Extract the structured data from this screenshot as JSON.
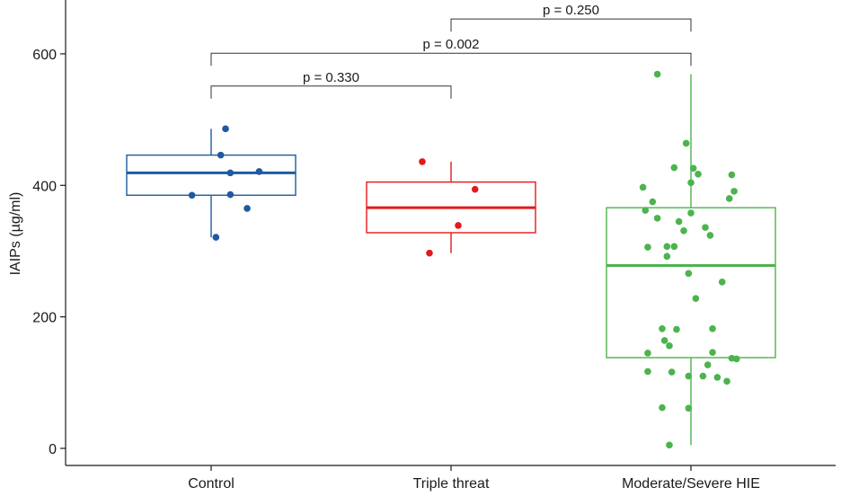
{
  "chart_data": {
    "type": "box",
    "title": "",
    "xlabel": "",
    "ylabel": "IAIPs (µg/ml)",
    "ylim": [
      -25,
      680
    ],
    "yticks": [
      0,
      200,
      400,
      600
    ],
    "categories": [
      "Control",
      "Triple threat",
      "Moderate/Severe HIE"
    ],
    "colors": {
      "Control": "#1f5aa0",
      "Triple threat": "#e31a1c",
      "Moderate/Severe HIE": "#4db34d"
    },
    "boxes": [
      {
        "category": "Control",
        "whisker_low": 321,
        "q1": 385,
        "median": 419,
        "q3": 446,
        "whisker_high": 486,
        "points": [
          [
            0.92,
            385
          ],
          [
            1.04,
            446
          ],
          [
            1.06,
            486
          ],
          [
            1.08,
            419
          ],
          [
            1.2,
            421
          ],
          [
            1.08,
            386
          ],
          [
            1.15,
            365
          ],
          [
            1.02,
            321
          ]
        ]
      },
      {
        "category": "Triple threat",
        "whisker_low": 297,
        "q1": 328,
        "median": 366,
        "q3": 405,
        "whisker_high": 436,
        "points": [
          [
            1.88,
            436
          ],
          [
            2.1,
            394
          ],
          [
            2.03,
            339
          ],
          [
            1.91,
            297
          ]
        ]
      },
      {
        "category": "Moderate/Severe HIE",
        "whisker_low": 5,
        "q1": 138,
        "median": 278,
        "q3": 366,
        "whisker_high": 569,
        "points": [
          [
            2.86,
            569
          ],
          [
            2.98,
            464
          ],
          [
            2.93,
            427
          ],
          [
            3.01,
            426
          ],
          [
            3.03,
            417
          ],
          [
            3.17,
            416
          ],
          [
            3.0,
            404
          ],
          [
            3.18,
            391
          ],
          [
            2.8,
            397
          ],
          [
            2.84,
            375
          ],
          [
            3.16,
            380
          ],
          [
            2.81,
            362
          ],
          [
            3.0,
            358
          ],
          [
            2.86,
            350
          ],
          [
            2.95,
            345
          ],
          [
            3.06,
            336
          ],
          [
            2.97,
            331
          ],
          [
            3.08,
            324
          ],
          [
            2.82,
            306
          ],
          [
            2.9,
            307
          ],
          [
            2.93,
            307
          ],
          [
            2.9,
            292
          ],
          [
            2.99,
            266
          ],
          [
            3.13,
            253
          ],
          [
            3.02,
            228
          ],
          [
            2.88,
            182
          ],
          [
            2.94,
            181
          ],
          [
            3.09,
            182
          ],
          [
            2.89,
            164
          ],
          [
            2.91,
            156
          ],
          [
            2.82,
            145
          ],
          [
            3.09,
            146
          ],
          [
            3.17,
            137
          ],
          [
            3.19,
            136
          ],
          [
            3.07,
            127
          ],
          [
            2.82,
            117
          ],
          [
            2.92,
            116
          ],
          [
            2.99,
            110
          ],
          [
            3.11,
            108
          ],
          [
            3.05,
            110
          ],
          [
            3.15,
            102
          ],
          [
            2.88,
            62
          ],
          [
            2.99,
            61
          ],
          [
            2.91,
            5
          ]
        ]
      }
    ],
    "comparisons": [
      {
        "from": "Triple threat",
        "to": "Moderate/Severe HIE",
        "label": "p = 0.250",
        "y": 653
      },
      {
        "from": "Control",
        "to": "Moderate/Severe HIE",
        "label": "p = 0.002",
        "y": 601
      },
      {
        "from": "Control",
        "to": "Triple threat",
        "label": "p = 0.330",
        "y": 551
      }
    ]
  }
}
